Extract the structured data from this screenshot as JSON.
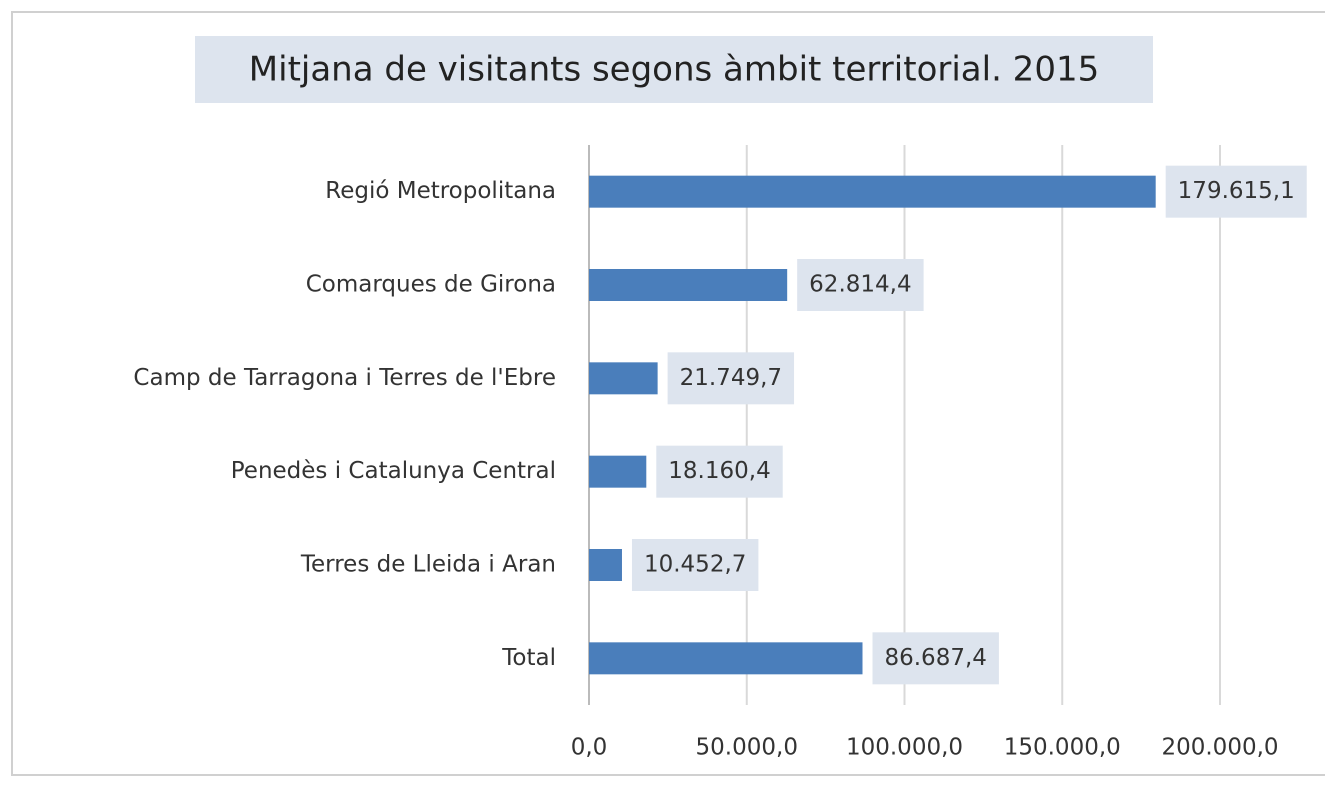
{
  "chart_data": {
    "type": "bar",
    "orientation": "horizontal",
    "title": "Mitjana de visitants segons àmbit territorial. 2015",
    "categories": [
      "Regió Metropolitana",
      "Comarques de Girona",
      "Camp de Tarragona i Terres de l'Ebre",
      "Penedès i Catalunya Central",
      "Terres de Lleida i Aran",
      "Total"
    ],
    "values": [
      179615.1,
      62814.4,
      21749.7,
      18160.4,
      10452.7,
      86687.4
    ],
    "value_labels": [
      "179.615,1",
      "62.814,4",
      "21.749,7",
      "18.160,4",
      "10.452,7",
      "86.687,4"
    ],
    "color": "#4a7ebb",
    "xlim": [
      0,
      200000
    ],
    "xticks": [
      {
        "value": 0,
        "label": "0,0"
      },
      {
        "value": 50000,
        "label": "50.000,0"
      },
      {
        "value": 100000,
        "label": "100.000,0"
      },
      {
        "value": 150000,
        "label": "150.000,0"
      },
      {
        "value": 200000,
        "label": "200.000,0"
      }
    ],
    "grid": true
  }
}
